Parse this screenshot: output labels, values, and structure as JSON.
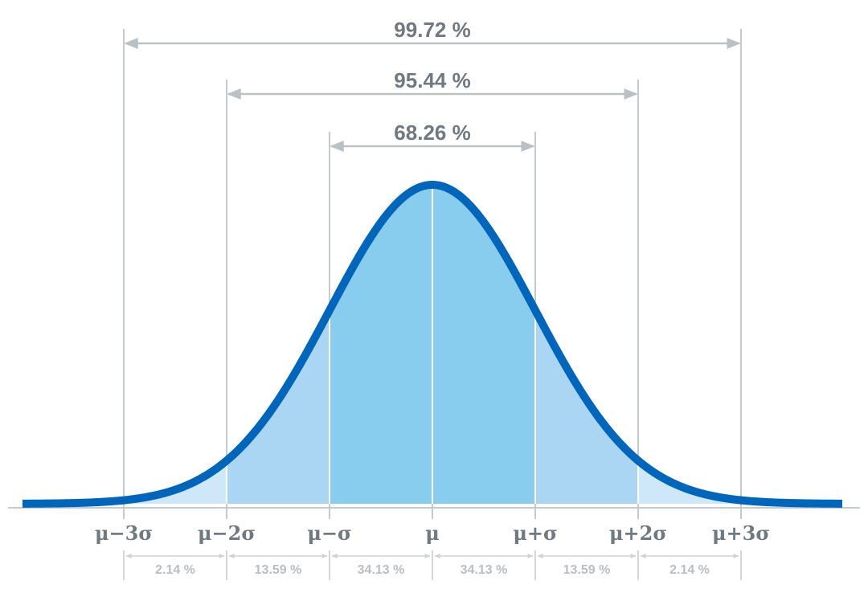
{
  "colors": {
    "curve": "#0066bb",
    "band_inner": "#88ccee",
    "band_middle": "#aad6f3",
    "band_outer": "#cfe8f9",
    "guide": "#c4cbd0",
    "arrow": "#b9c1c7",
    "label": "#6f7981",
    "pct": "#b7bfc5"
  },
  "diagram": {
    "spans": [
      {
        "label": "99.72 %",
        "sigma": 3
      },
      {
        "label": "95.44 %",
        "sigma": 2
      },
      {
        "label": "68.26 %",
        "sigma": 1
      }
    ],
    "ticks": [
      {
        "label": "μ−3σ",
        "sigma": -3
      },
      {
        "label": "μ−2σ",
        "sigma": -2
      },
      {
        "label": "μ−σ",
        "sigma": -1
      },
      {
        "label": "μ",
        "sigma": 0
      },
      {
        "label": "μ+σ",
        "sigma": 1
      },
      {
        "label": "μ+2σ",
        "sigma": 2
      },
      {
        "label": "μ+3σ",
        "sigma": 3
      }
    ],
    "segments": [
      {
        "label": "2.14 %",
        "from": -3,
        "to": -2
      },
      {
        "label": "13.59 %",
        "from": -2,
        "to": -1
      },
      {
        "label": "34.13 %",
        "from": -1,
        "to": 0
      },
      {
        "label": "34.13 %",
        "from": 0,
        "to": 1
      },
      {
        "label": "13.59 %",
        "from": 1,
        "to": 2
      },
      {
        "label": "2.14 %",
        "from": 2,
        "to": 3
      }
    ]
  }
}
